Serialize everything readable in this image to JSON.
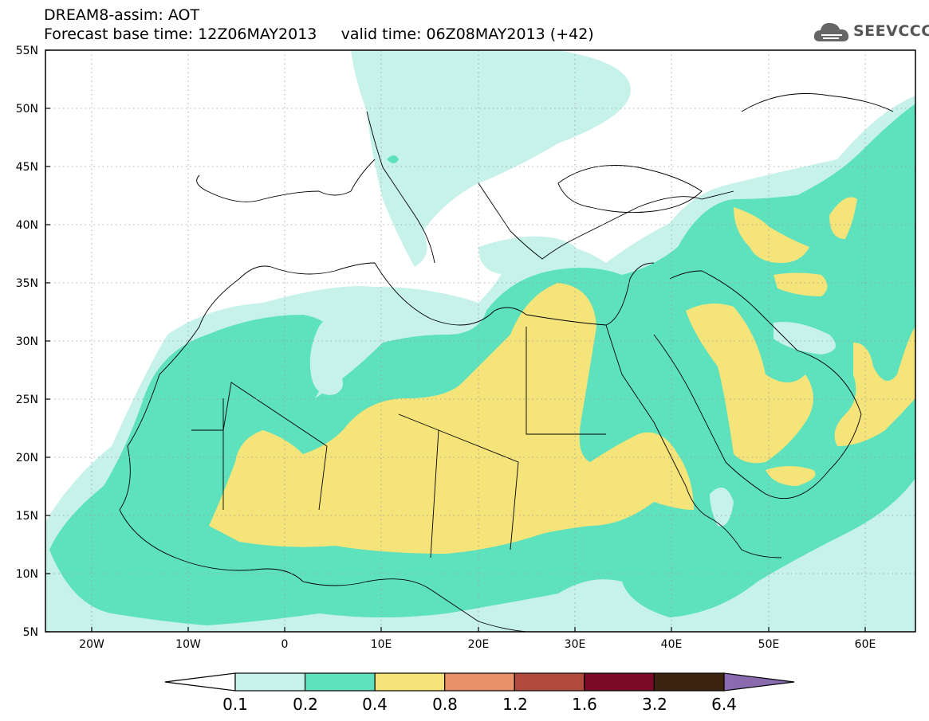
{
  "title": {
    "line1": "DREAM8-assim: AOT",
    "base_label": "Forecast base time: 12Z06MAY2013",
    "valid_label": "valid time: 06Z08MAY2013 (+42)"
  },
  "logo": {
    "text": "SEEVCCC",
    "icon": "cloud-icon"
  },
  "axes": {
    "lat_labels": [
      "55N",
      "50N",
      "45N",
      "40N",
      "35N",
      "30N",
      "25N",
      "20N",
      "15N",
      "10N",
      "5N"
    ],
    "lon_labels": [
      "20W",
      "10W",
      "0",
      "10E",
      "20E",
      "30E",
      "40E",
      "50E",
      "60E"
    ]
  },
  "colorbar": {
    "labels": [
      "0.1",
      "0.2",
      "0.4",
      "0.8",
      "1.2",
      "1.6",
      "3.2",
      "6.4"
    ],
    "colors": [
      "#ffffff",
      "#c6f2ea",
      "#5ee2bd",
      "#f5e47a",
      "#e9926a",
      "#b04a3a",
      "#7a0a25",
      "#3d2410",
      "#8b6bb0"
    ]
  },
  "chart_data": {
    "type": "heatmap",
    "variable": "AOT",
    "grid": true,
    "legend_position": "bottom"
  }
}
